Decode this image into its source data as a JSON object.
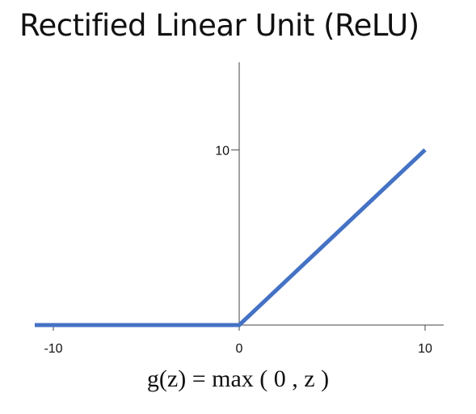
{
  "title": "Rectified Linear Unit (ReLU)",
  "formula": "g(z) = max ( 0 , z )",
  "colors": {
    "line": "#4472C4",
    "axis": "#444444",
    "text": "#111111"
  },
  "chart_data": {
    "type": "line",
    "title": "Rectified Linear Unit (ReLU)",
    "xlabel": "",
    "ylabel": "",
    "xlim": [
      -11,
      11
    ],
    "ylim": [
      0,
      15
    ],
    "x_ticks": [
      -10,
      0,
      10
    ],
    "x_tick_labels": [
      "-10",
      "0",
      "10"
    ],
    "y_ticks": [
      10
    ],
    "y_tick_labels": [
      "10"
    ],
    "grid": false,
    "series": [
      {
        "x": [
          -11,
          0,
          10
        ],
        "y": [
          0,
          0,
          10
        ],
        "color": "#4472C4"
      }
    ]
  }
}
